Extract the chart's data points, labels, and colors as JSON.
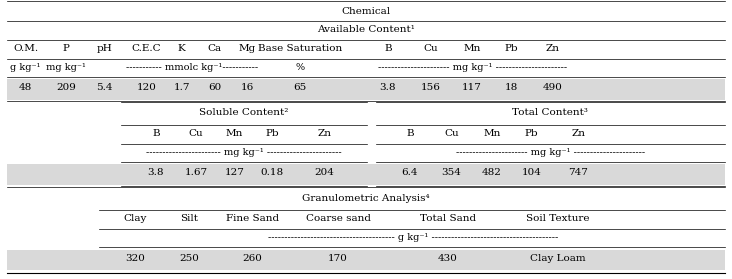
{
  "title": "Chemical",
  "bg_color": "#ffffff",
  "row_bg": "#d9d9d9",
  "font_size": 7.5,
  "sections": {
    "chemical_header": "Chemical",
    "available_header": "Available Content¹",
    "available_cols": [
      "O.M.",
      "P",
      "pH",
      "C.E.C",
      "K",
      "Ca",
      "Mg",
      "Base Saturation",
      "B",
      "Cu",
      "Mn",
      "Pb",
      "Zn"
    ],
    "available_data": [
      "48",
      "209",
      "5.4",
      "120",
      "1.7",
      "60",
      "16",
      "65",
      "3.8",
      "156",
      "117",
      "18",
      "490"
    ],
    "soluble_header": "Soluble Content²",
    "soluble_cols": [
      "B",
      "Cu",
      "Mn",
      "Pb",
      "Zn"
    ],
    "soluble_data": [
      "3.8",
      "1.67",
      "127",
      "0.18",
      "204"
    ],
    "total_header": "Total Content³",
    "total_cols": [
      "B",
      "Cu",
      "Mn",
      "Pb",
      "Zn"
    ],
    "total_data": [
      "6.4",
      "354",
      "482",
      "104",
      "747"
    ],
    "granulo_header": "Granulometric Analysis⁴",
    "granulo_cols": [
      "Clay",
      "Silt",
      "Fine Sand",
      "Coarse sand",
      "Total Sand",
      "Soil Texture"
    ],
    "granulo_data": [
      "320",
      "250",
      "260",
      "170",
      "430",
      "Clay Loam"
    ]
  }
}
